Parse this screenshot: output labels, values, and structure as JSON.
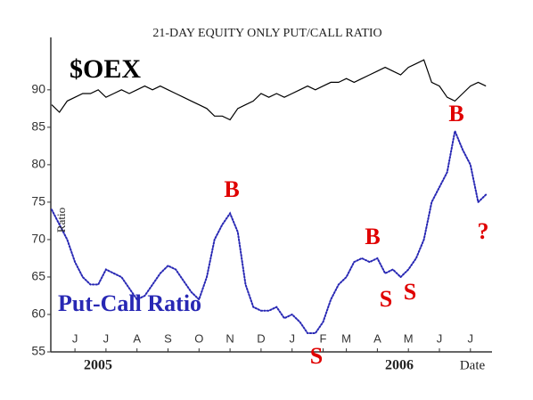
{
  "chart_data": {
    "type": "line",
    "title": "21-DAY EQUITY ONLY PUT/CALL RATIO",
    "ylabel": "Ratio",
    "xlabel": "Date",
    "year_labels": [
      "2005",
      "2006"
    ],
    "annotations": [
      "B",
      "B",
      "S",
      "S",
      "S",
      "B",
      "?"
    ],
    "categories": [
      null,
      null,
      null,
      "J",
      null,
      null,
      null,
      "J",
      null,
      null,
      null,
      "A",
      null,
      null,
      null,
      "S",
      null,
      null,
      null,
      "O",
      null,
      null,
      null,
      "N",
      null,
      null,
      null,
      "D",
      null,
      null,
      null,
      "J",
      null,
      null,
      null,
      "F",
      null,
      null,
      "M",
      null,
      null,
      null,
      "A",
      null,
      null,
      null,
      "M",
      null,
      null,
      null,
      "J",
      null,
      null,
      null,
      "J",
      null,
      null
    ],
    "series": [
      {
        "name": "$OEX",
        "color": "#000000",
        "style": "solid",
        "values": [
          88,
          87,
          88.5,
          89,
          89.5,
          89.5,
          90,
          89,
          89.5,
          90,
          89.5,
          90,
          90.5,
          90,
          90.5,
          90,
          89.5,
          89,
          88.5,
          88,
          87.5,
          86.5,
          86.5,
          86,
          87.5,
          88,
          88.5,
          89.5,
          89,
          89.5,
          89,
          89.5,
          90,
          90.5,
          90,
          90.5,
          91,
          91,
          91.5,
          91,
          91.5,
          92,
          92.5,
          93,
          92.5,
          92,
          93,
          93.5,
          94,
          91,
          90.5,
          89,
          88.5,
          89.5,
          90.5,
          91,
          90.5
        ]
      },
      {
        "name": "Put-Call Ratio",
        "color": "#2828b4",
        "style": "dotted",
        "values": [
          74,
          72,
          70,
          67,
          65,
          64,
          64,
          66,
          65.5,
          65,
          63.5,
          62,
          62.5,
          64,
          65.5,
          66.5,
          66,
          64.5,
          63,
          62,
          65,
          70,
          72,
          73.5,
          71,
          64,
          61,
          60.5,
          60.5,
          61,
          59.5,
          60,
          59,
          57.5,
          57.5,
          59,
          62,
          64,
          65,
          67,
          67.5,
          67,
          67.5,
          65.5,
          66,
          65,
          66,
          67.5,
          70,
          75,
          77,
          79,
          84.5,
          82,
          80,
          75,
          76
        ]
      }
    ],
    "ylim": [
      55,
      97
    ],
    "yticks": [
      55,
      60,
      65,
      70,
      75,
      80,
      85,
      90
    ],
    "annotation_color": "#e00000"
  }
}
